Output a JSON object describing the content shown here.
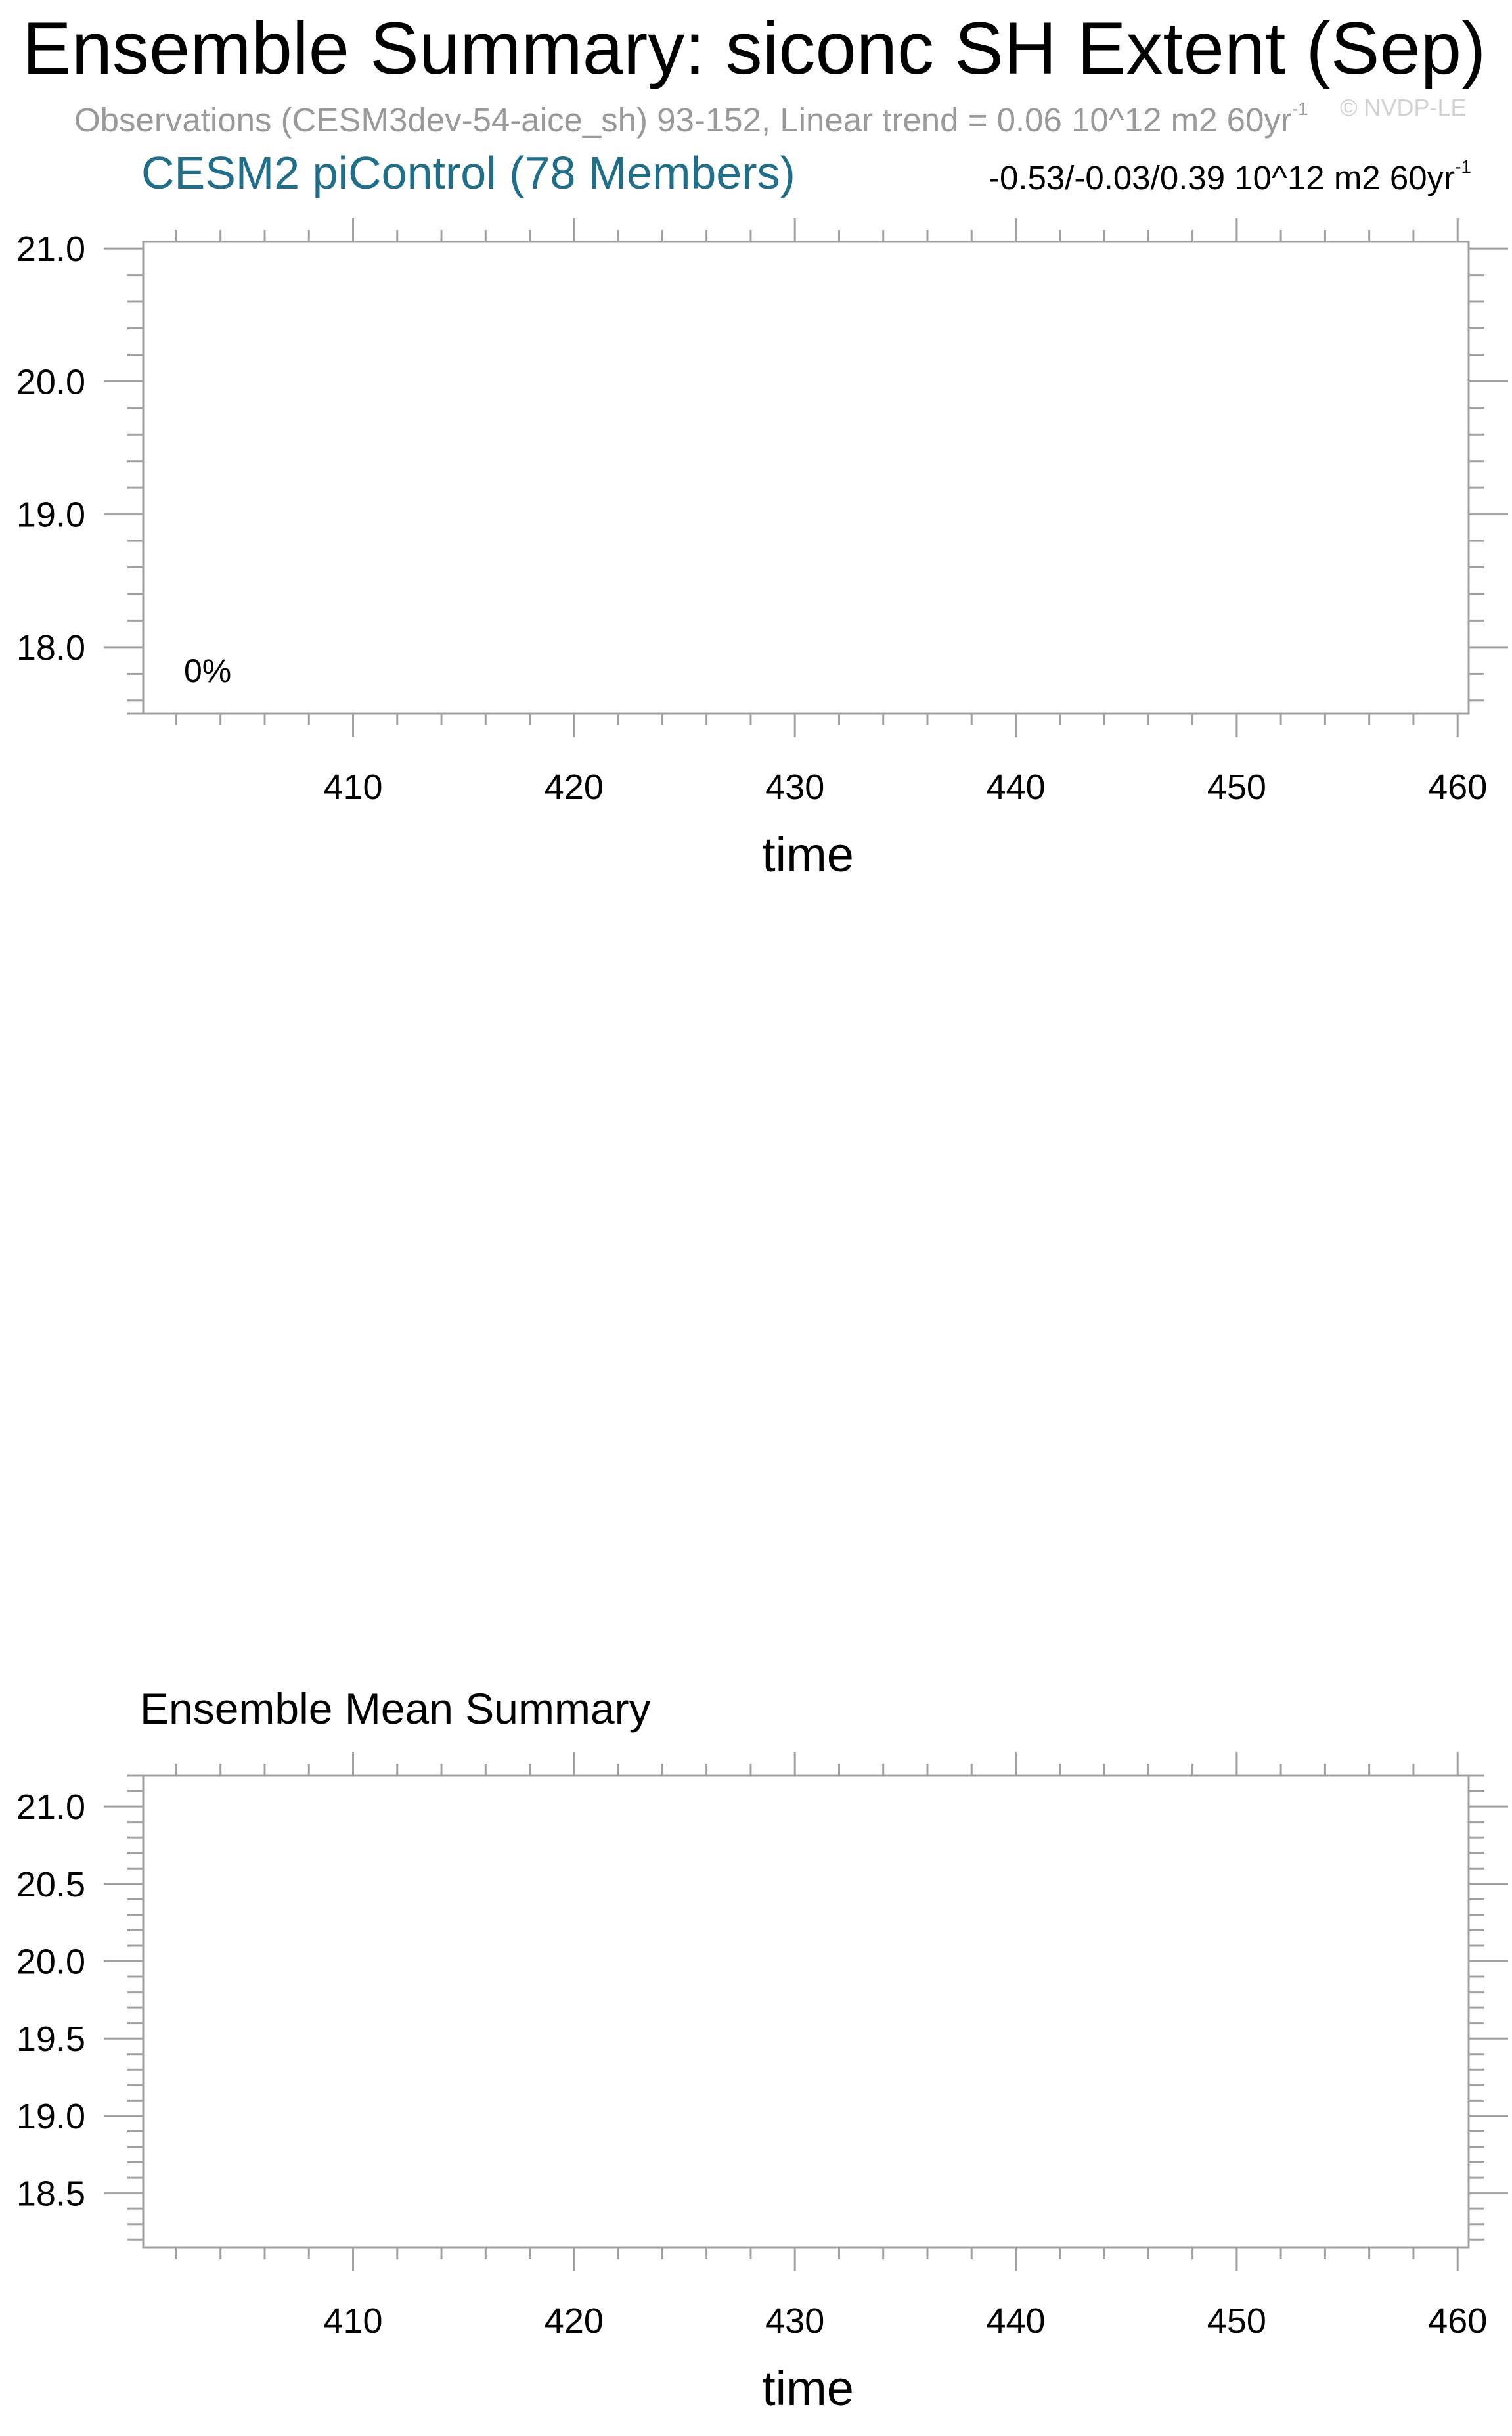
{
  "title": "Ensemble Summary: siconc SH Extent (Sep)",
  "observations_line": "Observations (CESM3dev-54-aice_sh) 93-152, Linear trend = 0.06 10^12 m2 60yr",
  "observations_unit_sup": "-1",
  "copyright": "© NVDP-LE",
  "model_title": "CESM2 piControl (78 Members)",
  "trend_stats": "-0.53/-0.03/0.39 10^12 m2 60yr",
  "trend_stats_sup": "-1",
  "colors": {
    "model_title": "#1f6f8b",
    "observations": "#9a9a9a",
    "axes": "#a0a0a0"
  },
  "chart_data": [
    {
      "type": "line",
      "title": "CESM2 piControl (78 Members)",
      "xlabel": "time",
      "ylabel": "",
      "xlim": [
        400.5,
        460.5
      ],
      "ylim": [
        17.5,
        21.05
      ],
      "x_ticks": [
        410,
        420,
        430,
        440,
        450,
        460
      ],
      "y_ticks": [
        18.0,
        19.0,
        20.0,
        21.0
      ],
      "y_tick_labels": [
        "18.0",
        "19.0",
        "20.0",
        "21.0"
      ],
      "annotation": "0%",
      "series": []
    },
    {
      "type": "line",
      "title": "Ensemble Mean Summary",
      "xlabel": "time",
      "ylabel": "",
      "xlim": [
        400.5,
        460.5
      ],
      "ylim": [
        18.15,
        21.2
      ],
      "x_ticks": [
        410,
        420,
        430,
        440,
        450,
        460
      ],
      "y_ticks": [
        18.5,
        19.0,
        19.5,
        20.0,
        20.5,
        21.0
      ],
      "y_tick_labels": [
        "18.5",
        "19.0",
        "19.5",
        "20.0",
        "20.5",
        "21.0"
      ],
      "series": []
    }
  ]
}
